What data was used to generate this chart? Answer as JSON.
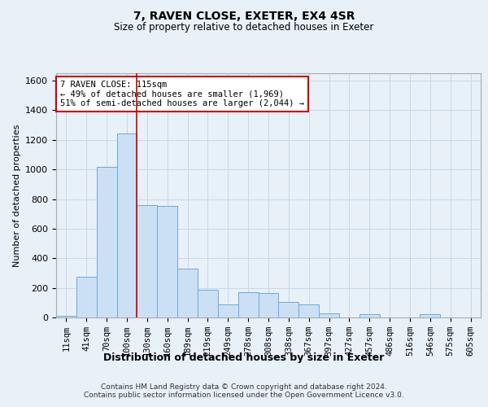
{
  "title": "7, RAVEN CLOSE, EXETER, EX4 4SR",
  "subtitle": "Size of property relative to detached houses in Exeter",
  "xlabel": "Distribution of detached houses by size in Exeter",
  "ylabel": "Number of detached properties",
  "bin_labels": [
    "11sqm",
    "41sqm",
    "70sqm",
    "100sqm",
    "130sqm",
    "160sqm",
    "189sqm",
    "219sqm",
    "249sqm",
    "278sqm",
    "308sqm",
    "338sqm",
    "367sqm",
    "397sqm",
    "427sqm",
    "457sqm",
    "486sqm",
    "516sqm",
    "546sqm",
    "575sqm",
    "605sqm"
  ],
  "bar_values": [
    10,
    275,
    1020,
    1245,
    760,
    755,
    330,
    185,
    90,
    170,
    165,
    105,
    90,
    25,
    0,
    20,
    0,
    0,
    20,
    0,
    0
  ],
  "bar_color": "#cce0f5",
  "bar_edge_color": "#6baad8",
  "grid_color": "#c8d8e8",
  "background_color": "#e8f0f8",
  "property_line_x": 3.5,
  "property_line_color": "#cc0000",
  "annotation_line1": "7 RAVEN CLOSE: 115sqm",
  "annotation_line2": "← 49% of detached houses are smaller (1,969)",
  "annotation_line3": "51% of semi-detached houses are larger (2,044) →",
  "annotation_box_color": "#ffffff",
  "annotation_box_edge": "#cc0000",
  "ylim": [
    0,
    1650
  ],
  "yticks": [
    0,
    200,
    400,
    600,
    800,
    1000,
    1200,
    1400,
    1600
  ],
  "footer": "Contains HM Land Registry data © Crown copyright and database right 2024.\nContains public sector information licensed under the Open Government Licence v3.0."
}
